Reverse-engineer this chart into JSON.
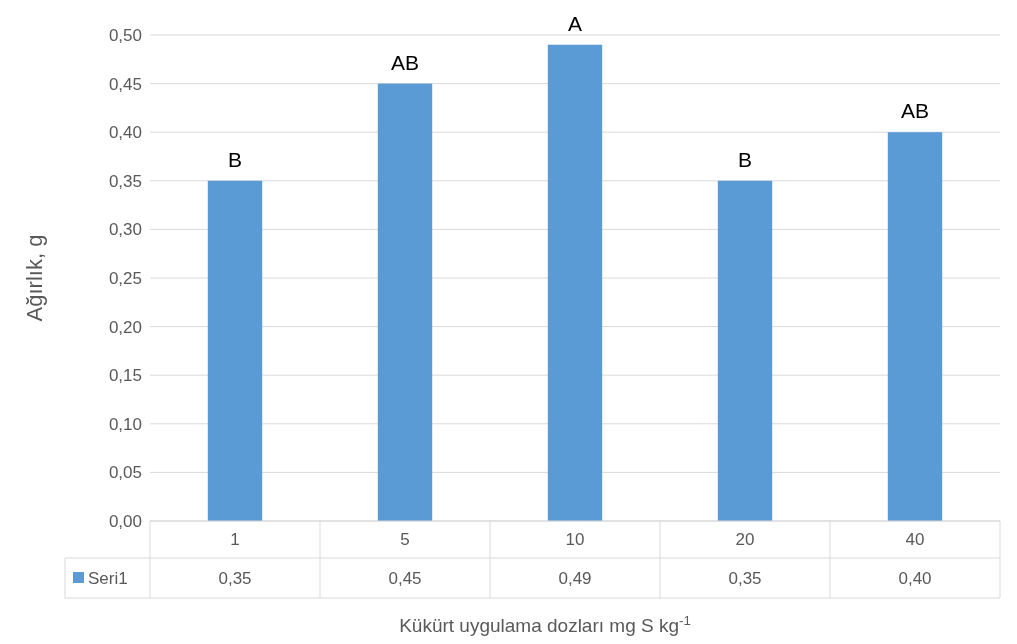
{
  "chart_data": {
    "type": "bar",
    "categories": [
      "1",
      "5",
      "10",
      "20",
      "40"
    ],
    "series": [
      {
        "name": "Seri1",
        "color": "#5b9bd5",
        "values": [
          0.35,
          0.45,
          0.49,
          0.35,
          0.4
        ],
        "value_labels": [
          "0,35",
          "0,45",
          "0,49",
          "0,35",
          "0,40"
        ]
      }
    ],
    "xlabel": "Kükürt uygulama dozları mg S kg$^{-1}$",
    "ylabel": "Ağırlık, g",
    "ylim": [
      0,
      0.5
    ],
    "yticks": [
      {
        "value": 0,
        "label": "0,00"
      },
      {
        "value": 0.05,
        "label": "0,05"
      },
      {
        "value": 0.1,
        "label": "0,10"
      },
      {
        "value": 0.15,
        "label": "0,15"
      },
      {
        "value": 0.2,
        "label": "0,20"
      },
      {
        "value": 0.25,
        "label": "0,25"
      },
      {
        "value": 0.3,
        "label": "0,30"
      },
      {
        "value": 0.35,
        "label": "0,35"
      },
      {
        "value": 0.4,
        "label": "0,40"
      },
      {
        "value": 0.45,
        "label": "0,45"
      },
      {
        "value": 0.5,
        "label": "0,50"
      }
    ],
    "grid": "y",
    "legend": "bottom",
    "annotations": [
      {
        "text": "B",
        "x": "1",
        "y": 0.35
      },
      {
        "text": "AB",
        "x": "5",
        "y": 0.45
      },
      {
        "text": "A",
        "x": "10",
        "y": 0.49
      },
      {
        "text": "B",
        "x": "20",
        "y": 0.35
      },
      {
        "text": "AB",
        "x": "40",
        "y": 0.4
      }
    ]
  }
}
